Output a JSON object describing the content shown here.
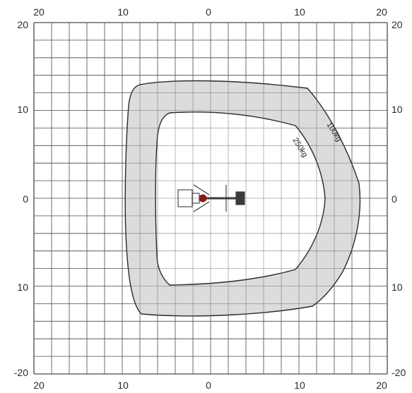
{
  "axis_ticks": {
    "top": [
      "20",
      "10",
      "0",
      "10",
      "20"
    ],
    "bottom": [
      "20",
      "10",
      "0",
      "10",
      "20"
    ],
    "left": [
      "20",
      "10",
      "0",
      "10",
      "-20"
    ],
    "right": [
      "20",
      "10",
      "0",
      "10",
      "-20"
    ]
  },
  "zones": {
    "outer_label": "100kg",
    "inner_label": "250kg"
  },
  "colors": {
    "grid": "#5a5a5a",
    "zone_fill": "#dcdcdc",
    "zone_stroke": "#2a2a2a",
    "machine": "#3a3a3a",
    "basket": "#8b1a1a"
  }
}
